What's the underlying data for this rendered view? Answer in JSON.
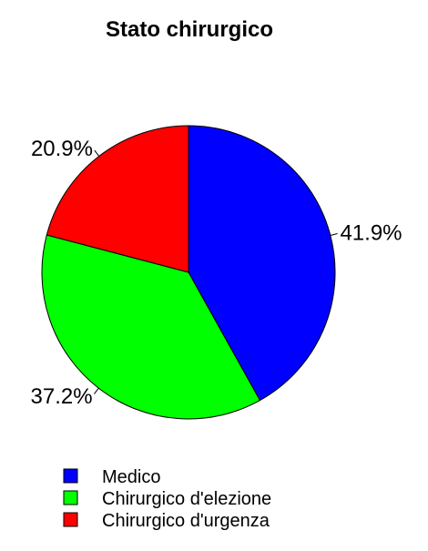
{
  "chart_data": {
    "type": "pie",
    "title": "Stato chirurgico",
    "start_angle_deg": 90,
    "direction": "clockwise",
    "slices": [
      {
        "label": "Medico",
        "value": 41.9,
        "value_label": "41.9%",
        "color": "#0000FF"
      },
      {
        "label": "Chirurgico d'elezione",
        "value": 37.2,
        "value_label": "37.2%",
        "color": "#00FF00"
      },
      {
        "label": "Chirurgico d'urgenza",
        "value": 20.9,
        "value_label": "20.9%",
        "color": "#FF0000"
      }
    ],
    "legend": {
      "position": "bottom",
      "entries": [
        "Medico",
        "Chirurgico d'elezione",
        "Chirurgico d'urgenza"
      ]
    }
  }
}
